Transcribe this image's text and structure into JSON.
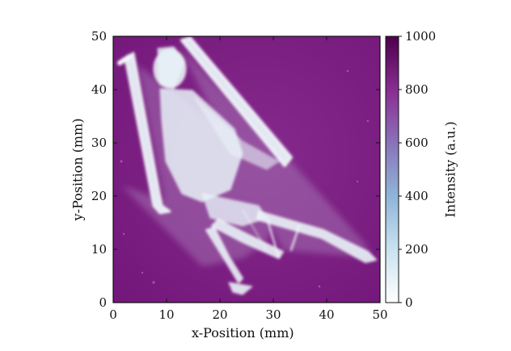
{
  "figure": {
    "x_axis_label": "x-Position (mm)",
    "y_axis_label": "y-Position (mm)",
    "x_ticks": [
      "0",
      "10",
      "20",
      "30",
      "40",
      "50"
    ],
    "y_ticks": [
      "0",
      "10",
      "20",
      "30",
      "40",
      "50"
    ],
    "x_range": [
      0,
      50
    ],
    "y_range": [
      0,
      50
    ],
    "colorbar": {
      "label": "Intensity (a.u.)",
      "ticks": [
        "0",
        "200",
        "400",
        "600",
        "800",
        "1000"
      ],
      "range": [
        0,
        1000
      ],
      "colormap": [
        "#ffffff",
        "#b8d8ea",
        "#7fa6d1",
        "#8a6db8",
        "#88288f",
        "#4d004b"
      ]
    },
    "image_subject": "x-ray-skeleton-of-small-animal",
    "background_color": "#7b1d83"
  }
}
